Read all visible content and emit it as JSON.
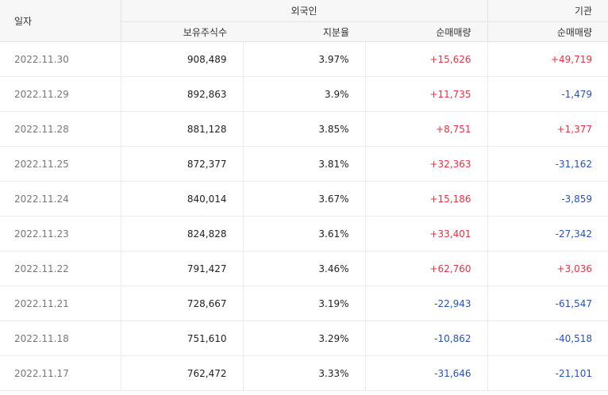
{
  "header": {
    "date_label": "일자",
    "foreign_label": "외국인",
    "institution_label": "기관",
    "holdings_label": "보유주식수",
    "ratio_label": "지분율",
    "foreign_net_label": "순매매량",
    "institution_net_label": "순매매량"
  },
  "colors": {
    "positive": "#e8333e",
    "negative": "#2454b8"
  },
  "rows": [
    {
      "date": "2022.11.30",
      "holdings": "908,489",
      "ratio": "3.97%",
      "foreign_net": "+15,626",
      "institution_net": "+49,719"
    },
    {
      "date": "2022.11.29",
      "holdings": "892,863",
      "ratio": "3.9%",
      "foreign_net": "+11,735",
      "institution_net": "-1,479"
    },
    {
      "date": "2022.11.28",
      "holdings": "881,128",
      "ratio": "3.85%",
      "foreign_net": "+8,751",
      "institution_net": "+1,377"
    },
    {
      "date": "2022.11.25",
      "holdings": "872,377",
      "ratio": "3.81%",
      "foreign_net": "+32,363",
      "institution_net": "-31,162"
    },
    {
      "date": "2022.11.24",
      "holdings": "840,014",
      "ratio": "3.67%",
      "foreign_net": "+15,186",
      "institution_net": "-3,859"
    },
    {
      "date": "2022.11.23",
      "holdings": "824,828",
      "ratio": "3.61%",
      "foreign_net": "+33,401",
      "institution_net": "-27,342"
    },
    {
      "date": "2022.11.22",
      "holdings": "791,427",
      "ratio": "3.46%",
      "foreign_net": "+62,760",
      "institution_net": "+3,036"
    },
    {
      "date": "2022.11.21",
      "holdings": "728,667",
      "ratio": "3.19%",
      "foreign_net": "-22,943",
      "institution_net": "-61,547"
    },
    {
      "date": "2022.11.18",
      "holdings": "751,610",
      "ratio": "3.29%",
      "foreign_net": "-10,862",
      "institution_net": "-40,518"
    },
    {
      "date": "2022.11.17",
      "holdings": "762,472",
      "ratio": "3.33%",
      "foreign_net": "-31,646",
      "institution_net": "-21,101"
    }
  ]
}
